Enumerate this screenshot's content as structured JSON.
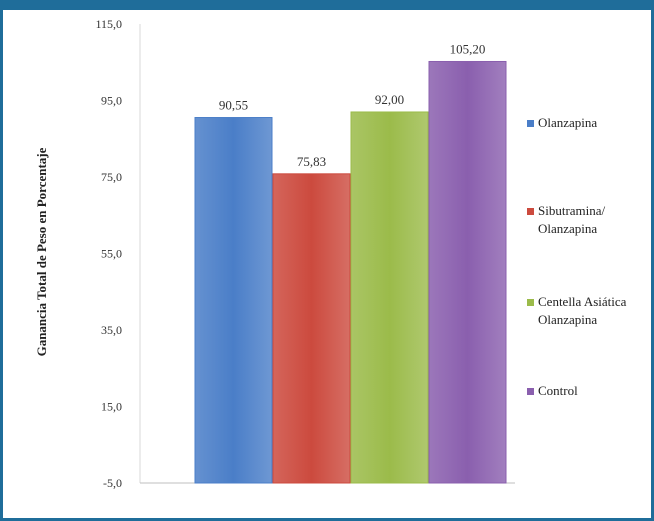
{
  "chart_data": {
    "type": "bar",
    "title": "",
    "xlabel": "",
    "ylabel": "Ganancia Total de Peso en Porcentaje",
    "ylim": [
      -5,
      115
    ],
    "yticks": [
      "-5,0",
      "15,0",
      "35,0",
      "55,0",
      "75,0",
      "95,0",
      "115,0"
    ],
    "grid": false,
    "legend_position": "right",
    "categories": [
      "Olanzapina",
      "Sibutramina/\nOlanzapina",
      "Centella Asiática\nOlanzapina",
      "Control"
    ],
    "values": [
      90.55,
      75.83,
      92.0,
      105.2
    ],
    "value_labels": [
      "90,55",
      "75,83",
      "92,00",
      "105,20"
    ],
    "colors": [
      "#4a7ec8",
      "#cc4a3e",
      "#9bbb4a",
      "#8a5fae"
    ]
  }
}
